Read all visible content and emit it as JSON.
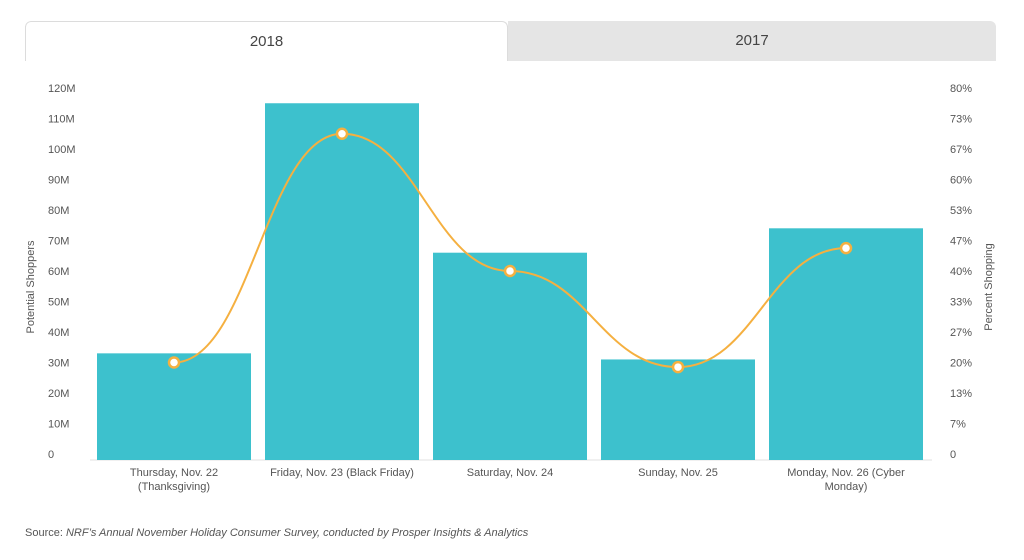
{
  "tabs": [
    {
      "label": "2018",
      "active": true
    },
    {
      "label": "2017",
      "active": false
    }
  ],
  "chart_data": {
    "type": "bar",
    "categories": [
      [
        "Thursday, Nov. 22",
        "(Thanksgiving)"
      ],
      [
        "Friday, Nov. 23 (Black Friday)"
      ],
      [
        "Saturday, Nov. 24"
      ],
      [
        "Sunday, Nov. 25"
      ],
      [
        "Monday, Nov. 26 (Cyber",
        "Monday)"
      ]
    ],
    "series": [
      {
        "type": "bar",
        "axis": "left",
        "values": [
          33,
          115,
          66,
          31,
          74
        ],
        "unit": "M",
        "color": "#3dc1cd"
      },
      {
        "type": "line",
        "axis": "right",
        "values": [
          20,
          70,
          40,
          19,
          45
        ],
        "unit": "%",
        "color": "#f5b040",
        "smooth": true
      }
    ],
    "ylabel": "Potential Shoppers",
    "y2label": "Percent Shopping",
    "ylim": [
      0,
      120
    ],
    "y2lim": [
      0,
      80
    ],
    "yticks": [
      "0",
      "10M",
      "20M",
      "30M",
      "40M",
      "50M",
      "60M",
      "70M",
      "80M",
      "90M",
      "100M",
      "110M",
      "120M"
    ],
    "y2ticks": [
      "0",
      "7%",
      "13%",
      "20%",
      "27%",
      "33%",
      "40%",
      "47%",
      "53%",
      "60%",
      "67%",
      "73%",
      "80%"
    ],
    "grid": false,
    "legend": "none"
  },
  "source": {
    "label": "Source:",
    "text": "NRF’s Annual November Holiday Consumer Survey, conducted by Prosper Insights & Analytics"
  }
}
